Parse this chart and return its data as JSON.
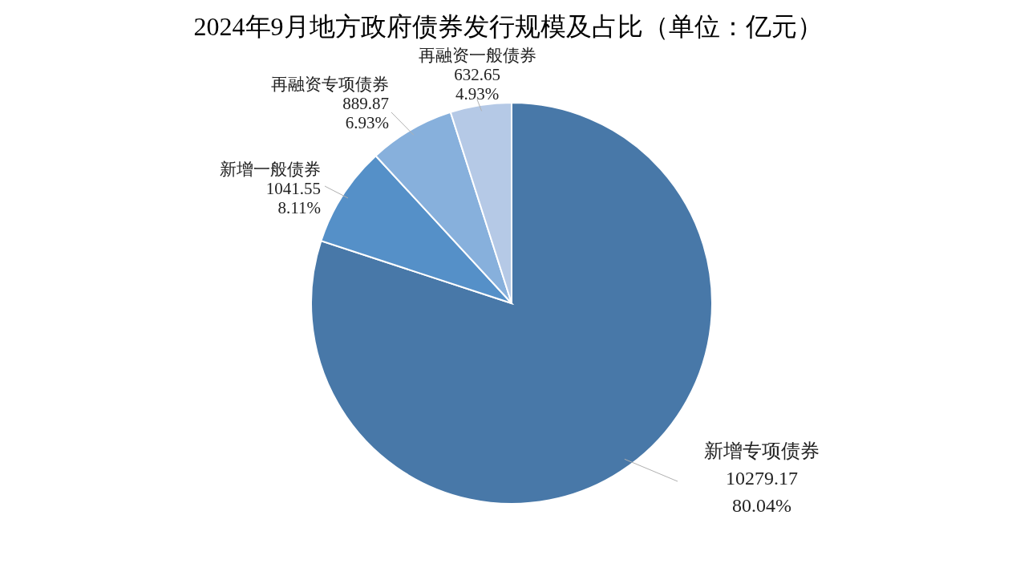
{
  "chart_data": {
    "type": "pie",
    "title": "2024年9月地方政府债券发行规模及占比（单位：亿元）",
    "categories": [
      "新增专项债券",
      "新增一般债券",
      "再融资专项债券",
      "再融资一般债券"
    ],
    "values": [
      10279.17,
      1041.55,
      889.87,
      632.65
    ],
    "value_labels": [
      "10279.17\n80.04%",
      "1041.55\n8.11%",
      "889.87\n6.93%",
      "632.65\n4.93%"
    ],
    "colors": [
      "#4878a8",
      "#5590c8",
      "#87b0dc",
      "#b5c9e6"
    ],
    "legend": false
  }
}
